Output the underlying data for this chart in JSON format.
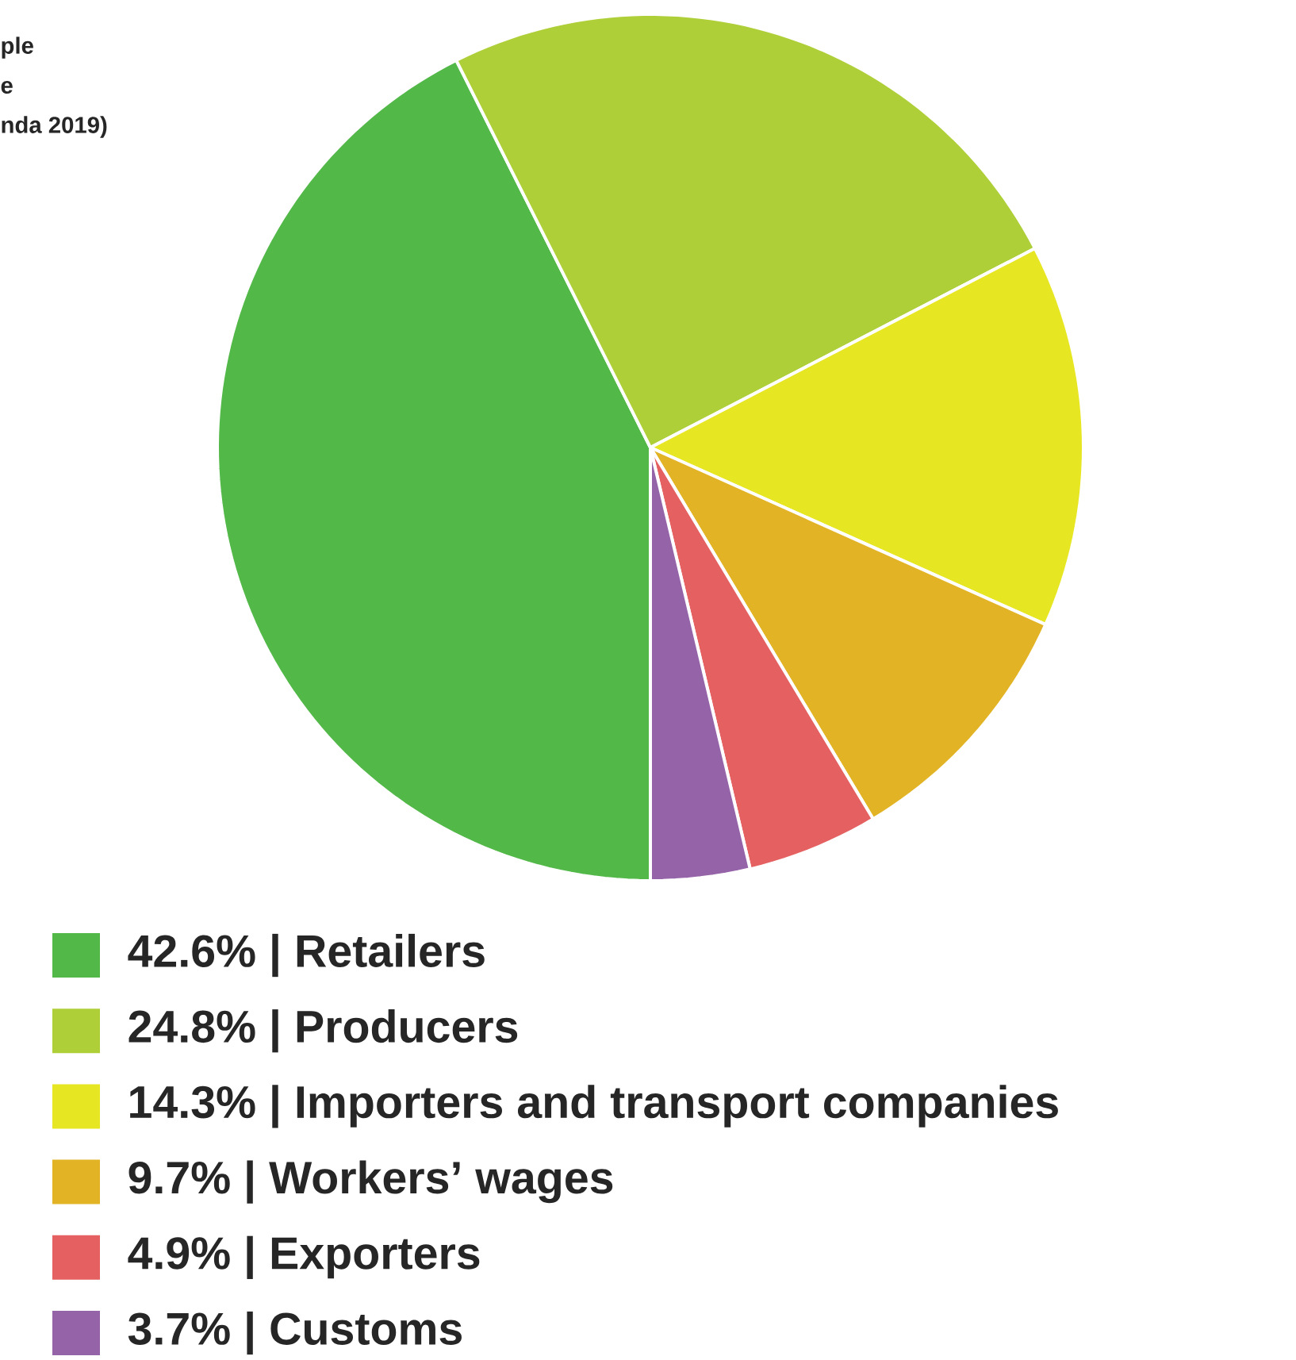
{
  "chart_data": {
    "type": "pie",
    "annotations": [
      "ple",
      "e",
      "nda 2019)"
    ],
    "categories": [
      "42.6% | Retailers",
      "24.8% | Producers",
      "14.3% | Importers and transport companies",
      "9.7% | Workers’ wages",
      "4.9% | Exporters",
      "3.7% | Customs"
    ],
    "values": [
      42.6,
      24.8,
      14.3,
      9.7,
      4.9,
      3.7
    ],
    "colors": [
      "#52b848",
      "#aecf38",
      "#e6e622",
      "#e2b425",
      "#e56161",
      "#9563a8"
    ],
    "legend": "bottom"
  }
}
